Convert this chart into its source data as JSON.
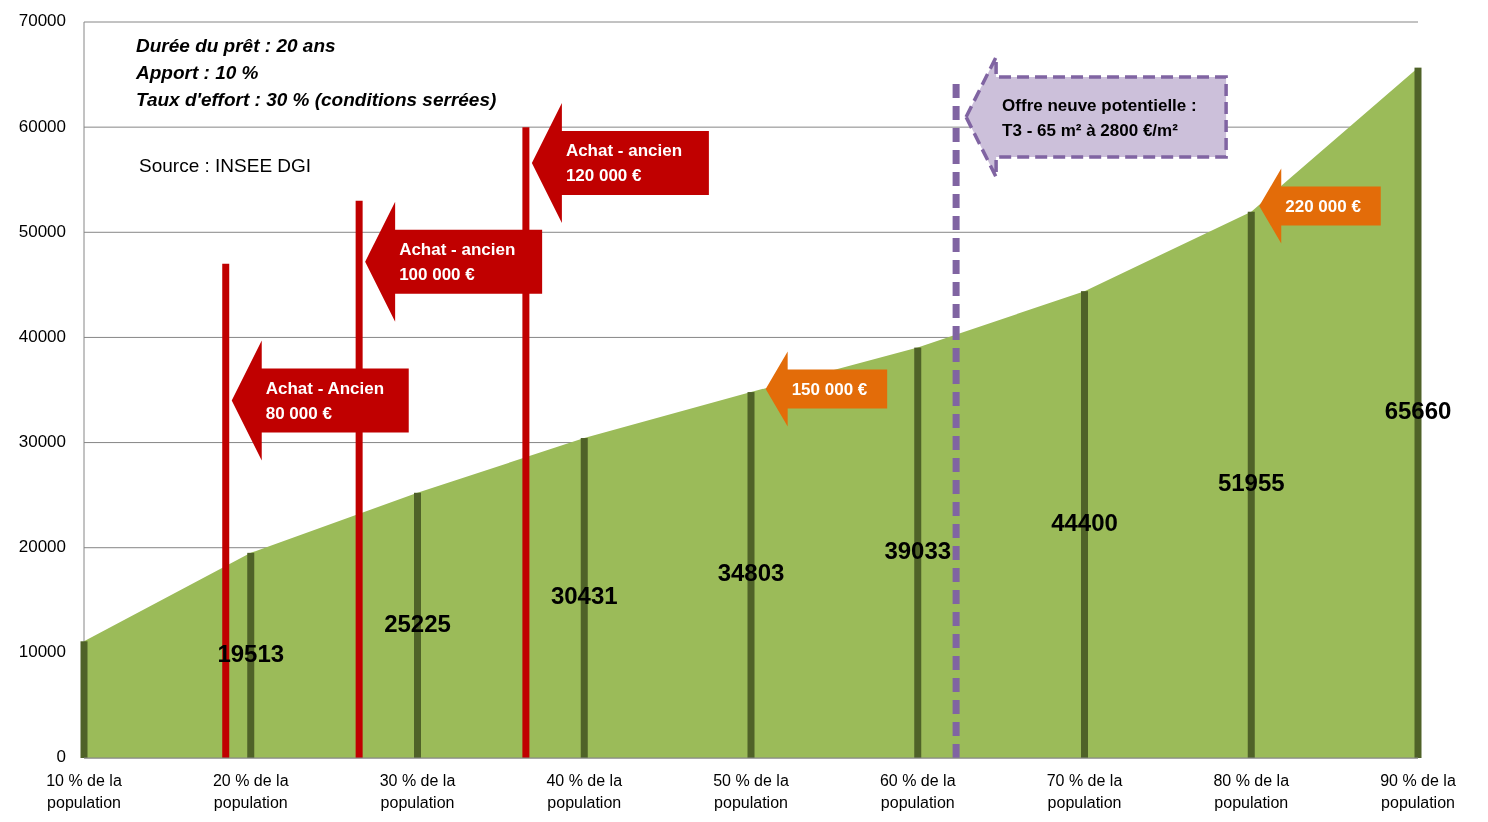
{
  "chart_data": {
    "type": "bar",
    "x": [
      10,
      20,
      30,
      40,
      50,
      60,
      70,
      80,
      90
    ],
    "xlim": [
      10,
      90
    ],
    "xticks": [
      {
        "value": 10,
        "label": "10 % de la\npopulation"
      },
      {
        "value": 20,
        "label": "20 % de la\npopulation"
      },
      {
        "value": 30,
        "label": "30 % de la\npopulation"
      },
      {
        "value": 40,
        "label": "40 % de la\npopulation"
      },
      {
        "value": 50,
        "label": "50 % de la\npopulation"
      },
      {
        "value": 60,
        "label": "60 % de la\npopulation"
      },
      {
        "value": 70,
        "label": "70 % de la\npopulation"
      },
      {
        "value": 80,
        "label": "80 % de la\npopulation"
      },
      {
        "value": 90,
        "label": "90 % de la\npopulation"
      }
    ],
    "ylim": [
      0,
      70000
    ],
    "yticks": [
      0,
      10000,
      20000,
      30000,
      40000,
      50000,
      60000,
      70000
    ],
    "grid": "y",
    "series": [
      {
        "type": "area",
        "color": "#9bbb59",
        "values": [
          11100,
          19513,
          25225,
          30431,
          34803,
          39033,
          44400,
          51955,
          65660
        ]
      },
      {
        "color": "#4f6228",
        "values": [
          11100,
          19513,
          25225,
          30431,
          34803,
          39033,
          44400,
          51955,
          65660
        ],
        "value_labels": [
          null,
          "19513",
          "25225",
          "30431",
          "34803",
          "39033",
          "44400",
          "51955",
          "65660"
        ]
      },
      {
        "type": "line",
        "color": "#c00000",
        "x": [
          18.5,
          18.5
        ],
        "values": [
          0,
          47000
        ]
      },
      {
        "type": "line",
        "color": "#c00000",
        "x": [
          26.5,
          26.5
        ],
        "values": [
          0,
          53000
        ]
      },
      {
        "type": "line",
        "color": "#c00000",
        "x": [
          36.5,
          36.5
        ],
        "values": [
          0,
          60000
        ]
      }
    ],
    "ref_lines": [
      {
        "axis": "x",
        "value": 62.3,
        "label": "Offre neuve potentielle :\nT3 - 65 m² à 2800 €/m²",
        "color": "#8064a2",
        "line_style": "dashed"
      }
    ],
    "annotations": [
      "Durée du prêt : 20 ans\nApport : 10 %\nTaux d'effort : 30 % (conditions serrées)",
      "Source : INSEE DGI",
      {
        "text": "Achat - Ancien\n80 000 €",
        "x": 18.5,
        "y": 34000
      },
      {
        "text": "Achat - ancien\n100 000 €",
        "x": 26.5,
        "y": 47200
      },
      {
        "text": "Achat - ancien\n120 000 €",
        "x": 36.5,
        "y": 56600
      },
      {
        "text": "150 000 €",
        "x": 50.4,
        "y": 35100
      },
      {
        "text": "220 000 €",
        "x": 80,
        "y": 52500
      }
    ]
  }
}
